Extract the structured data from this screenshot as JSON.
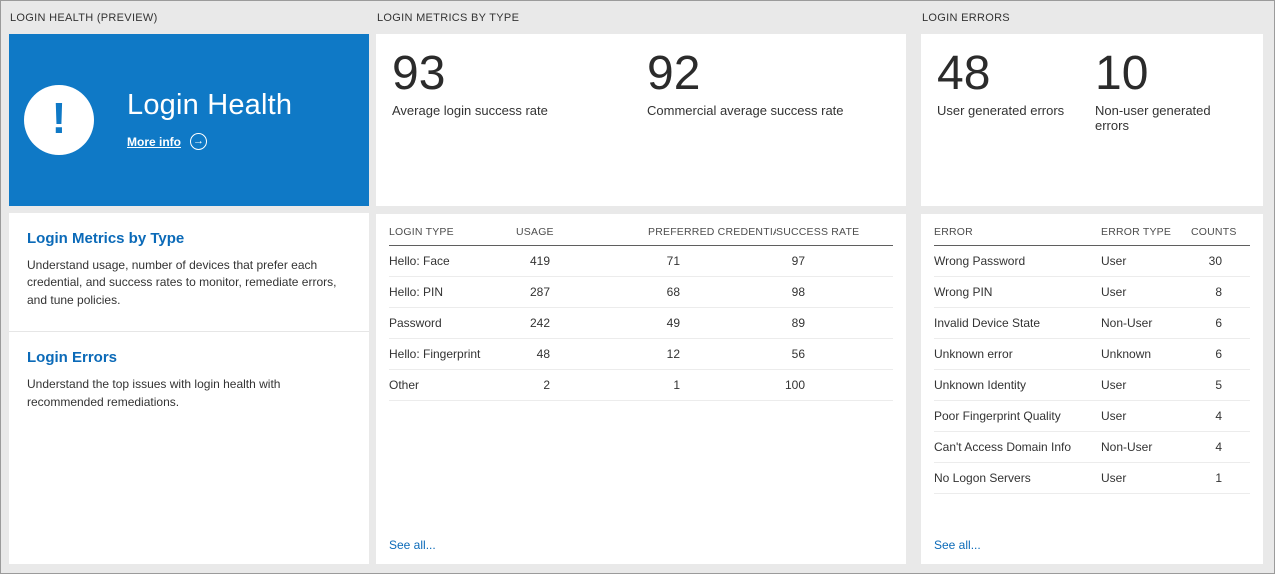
{
  "colors": {
    "background": "#e9e9e9",
    "accent_blue": "#0f79c6",
    "link_blue": "#0b6ab8",
    "card": "#ffffff"
  },
  "icons": {
    "alert": "!",
    "arrow_right": "→"
  },
  "health": {
    "header": "LOGIN HEALTH (PREVIEW)",
    "hero": {
      "title": "Login Health",
      "more_info": "More info"
    },
    "sections": [
      {
        "title": "Login Metrics by Type",
        "description": "Understand usage, number of devices that prefer each credential, and success rates to monitor, remediate errors, and tune policies."
      },
      {
        "title": "Login Errors",
        "description": "Understand the top issues with login health with recommended remediations."
      }
    ]
  },
  "metrics": {
    "header": "LOGIN METRICS BY TYPE",
    "stats": [
      {
        "value": "93",
        "label": "Average login success rate"
      },
      {
        "value": "92",
        "label": "Commercial average success rate"
      }
    ],
    "table": {
      "columns": [
        "LOGIN TYPE",
        "USAGE",
        "PREFERRED CREDENTIAL",
        "SUCCESS RATE"
      ],
      "rows": [
        [
          "Hello: Face",
          "419",
          "71",
          "97"
        ],
        [
          "Hello: PIN",
          "287",
          "68",
          "98"
        ],
        [
          "Password",
          "242",
          "49",
          "89"
        ],
        [
          "Hello: Fingerprint",
          "48",
          "12",
          "56"
        ],
        [
          "Other",
          "2",
          "1",
          "100"
        ]
      ]
    },
    "see_all": "See all..."
  },
  "errors": {
    "header": "LOGIN ERRORS",
    "stats": [
      {
        "value": "48",
        "label": "User generated errors"
      },
      {
        "value": "10",
        "label": "Non-user generated errors"
      }
    ],
    "table": {
      "columns": [
        "ERROR",
        "ERROR TYPE",
        "COUNTS"
      ],
      "rows": [
        [
          "Wrong Password",
          "User",
          "30"
        ],
        [
          "Wrong PIN",
          "User",
          "8"
        ],
        [
          "Invalid Device State",
          "Non-User",
          "6"
        ],
        [
          "Unknown error",
          "Unknown",
          "6"
        ],
        [
          "Unknown Identity",
          "User",
          "5"
        ],
        [
          "Poor Fingerprint Quality",
          "User",
          "4"
        ],
        [
          "Can't Access Domain Info",
          "Non-User",
          "4"
        ],
        [
          "No Logon Servers",
          "User",
          "1"
        ]
      ]
    },
    "see_all": "See all..."
  }
}
